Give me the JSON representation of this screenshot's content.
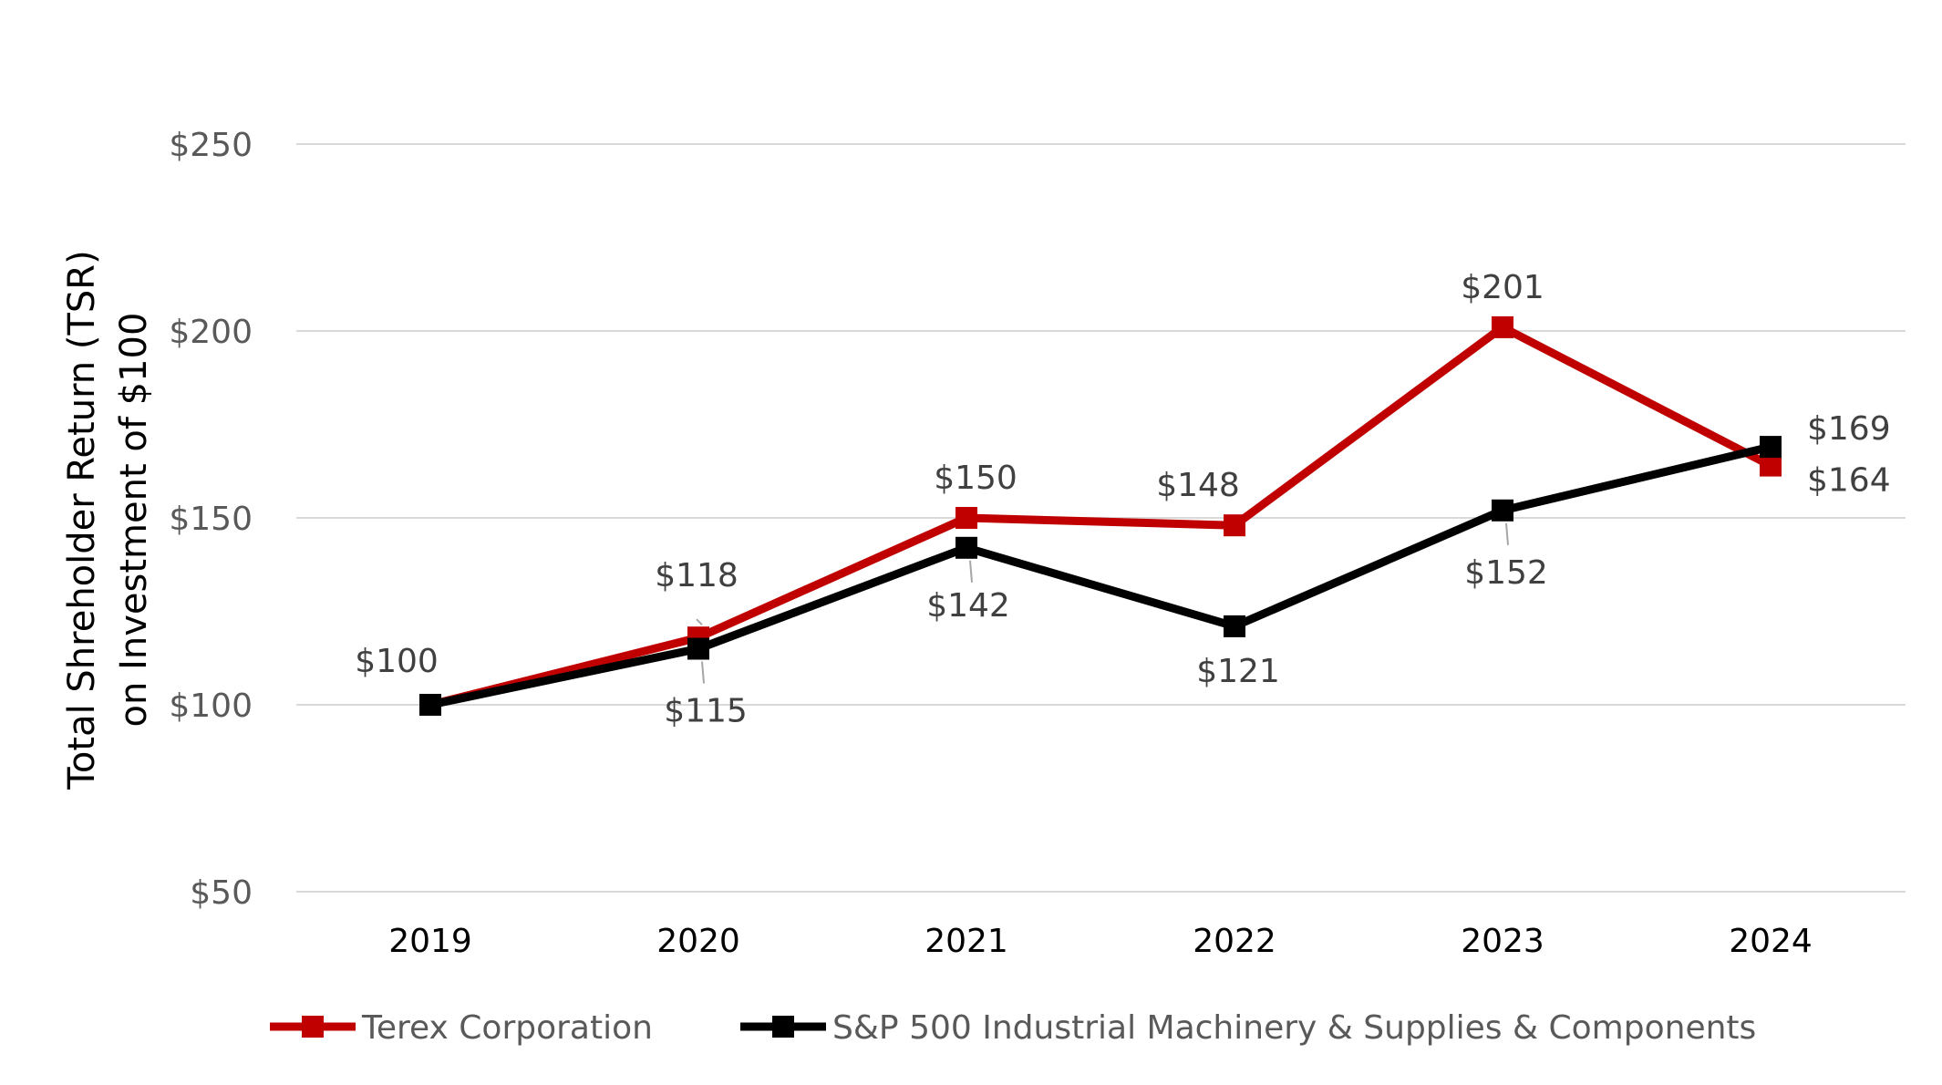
{
  "chart_data": {
    "type": "line",
    "ylabel_lines": [
      "Total Shreholder Return (TSR)",
      "on Investment of $100"
    ],
    "x": [
      "2019",
      "2020",
      "2021",
      "2022",
      "2023",
      "2024"
    ],
    "ylim": [
      50,
      250
    ],
    "yticks": [
      50,
      100,
      150,
      200,
      250
    ],
    "ytick_labels": [
      "$50",
      "$100",
      "$150",
      "$200",
      "$250"
    ],
    "grid": true,
    "legend_position": "bottom",
    "series": [
      {
        "name": "Terex Corporation",
        "color": "#c00000",
        "values": [
          100,
          118,
          150,
          148,
          201,
          164
        ],
        "labels": [
          "$100",
          "$118",
          "$150",
          "$148",
          "$201",
          "$164"
        ]
      },
      {
        "name": "S&P 500 Industrial Machinery & Supplies & Components",
        "color": "#000000",
        "values": [
          100,
          115,
          142,
          121,
          152,
          169
        ],
        "labels": [
          "",
          "$115",
          "$142",
          "$121",
          "$152",
          "$169"
        ]
      }
    ]
  }
}
